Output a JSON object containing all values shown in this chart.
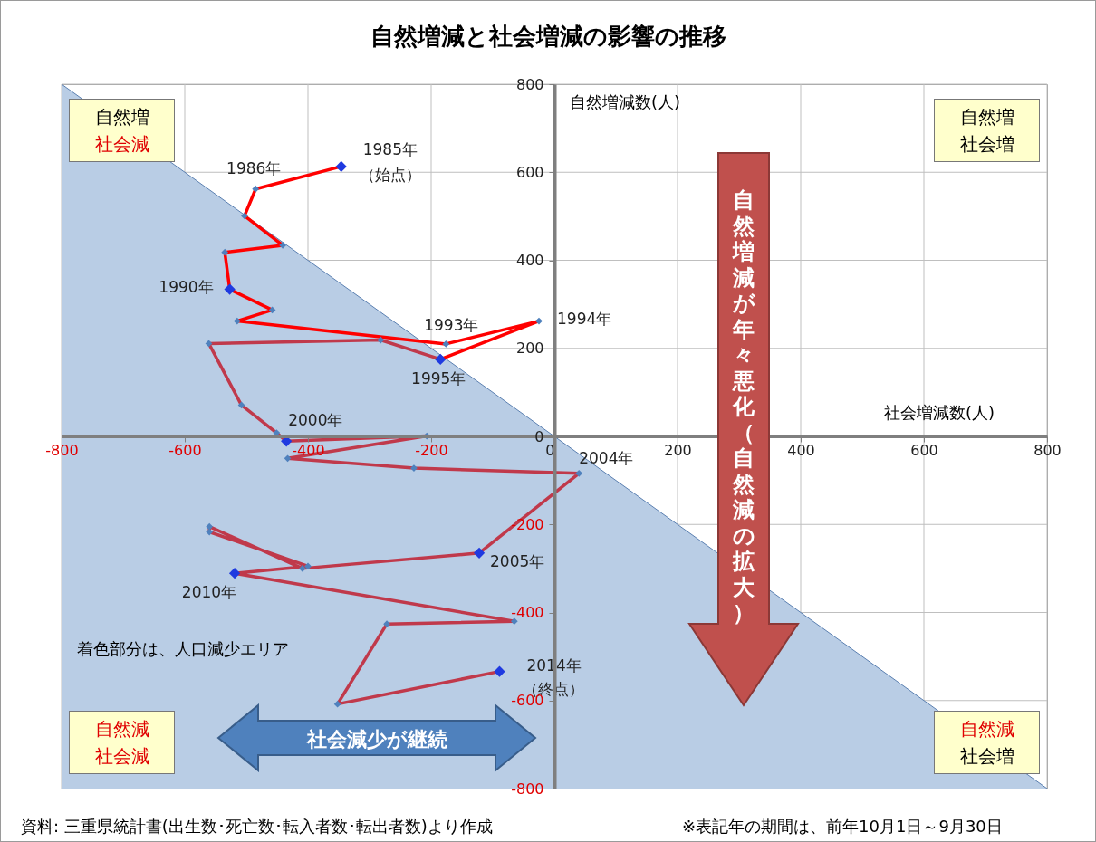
{
  "chart_data": {
    "type": "line",
    "title": "自然増減と社会増減の影響の推移",
    "xlabel": "社会増減数(人)",
    "ylabel": "自然増減数(人)",
    "xlim": [
      -800,
      800
    ],
    "ylim": [
      -800,
      800
    ],
    "xticks": [
      -800,
      -600,
      -400,
      -200,
      0,
      200,
      400,
      600,
      800
    ],
    "yticks": [
      -800,
      -600,
      -400,
      -200,
      0,
      200,
      400,
      600,
      800
    ],
    "grid": true,
    "marker": "diamond",
    "line_style": "solid",
    "series": [
      {
        "type": "area",
        "marker": "none",
        "color": "#b9cde5",
        "x": [
          -800,
          800
        ],
        "values": [
          800,
          -800
        ]
      },
      {
        "marker": "none",
        "color": "#ff0000",
        "x": [
          -346,
          -485,
          -503,
          -441,
          -535,
          -527,
          -458,
          -515,
          -176,
          -25,
          -185
        ],
        "values": [
          613,
          562,
          501,
          434,
          418,
          334,
          287,
          262,
          210,
          262,
          175
        ]
      },
      {
        "marker": "none",
        "color": "#c0394b",
        "x": [
          -185,
          -282,
          -561,
          -508,
          -451,
          -435,
          -207,
          -433,
          -228,
          40,
          -122,
          -409,
          -560,
          -560,
          -400,
          -519,
          -65,
          -272,
          -352,
          -89
        ],
        "values": [
          175,
          219,
          211,
          71,
          8,
          -11,
          1,
          -50,
          -72,
          -84,
          -265,
          -300,
          -205,
          -217,
          -295,
          -311,
          -420,
          -426,
          -608,
          -534
        ]
      },
      {
        "type": "scatter",
        "color": "#4f81bd",
        "x": [
          -485,
          -503,
          -441,
          -535,
          -458,
          -515,
          -176,
          -25,
          -282,
          -561,
          -508,
          -451,
          -207,
          -433,
          -228,
          40,
          -409,
          -560,
          -560,
          -400,
          -65,
          -272,
          -352
        ],
        "values": [
          562,
          501,
          434,
          418,
          287,
          262,
          210,
          262,
          219,
          211,
          71,
          8,
          1,
          -50,
          -72,
          -84,
          -300,
          -205,
          -217,
          -295,
          -420,
          -426,
          -608
        ]
      },
      {
        "type": "scatter",
        "color": "#1f3ae0",
        "x": [
          -346,
          -527,
          -185,
          -435,
          -122,
          -519,
          -89
        ],
        "values": [
          613,
          334,
          175,
          -11,
          -265,
          -311,
          -534
        ]
      }
    ],
    "annotations": [
      "自然増",
      "社会減",
      "自然増",
      "社会増",
      "自然減",
      "社会減",
      "自然減",
      "社会増",
      "着色部分は、人口減少エリア",
      "自然増減が年々悪化（自然減の拡大）",
      "社会減少が継続",
      "資料: 三重県統計書(出生数･死亡数･転入者数･転出者数)より作成",
      "※表記年の期間は、前年10月1日～9月30日",
      {
        "text": "1985年",
        "x": -346,
        "y": 613
      },
      {
        "text": "（始点）",
        "x": -346,
        "y": 613
      },
      {
        "text": "1986年",
        "x": -485,
        "y": 562
      },
      {
        "text": "1990年",
        "x": -527,
        "y": 334
      },
      {
        "text": "1993年",
        "x": -176,
        "y": 210
      },
      {
        "text": "1994年",
        "x": -25,
        "y": 262
      },
      {
        "text": "1995年",
        "x": -185,
        "y": 175
      },
      {
        "text": "2000年",
        "x": -435,
        "y": -11
      },
      {
        "text": "2004年",
        "x": 40,
        "y": -84
      },
      {
        "text": "2005年",
        "x": -122,
        "y": -265
      },
      {
        "text": "2010年",
        "x": -519,
        "y": -311
      },
      {
        "text": "2014年",
        "x": -89,
        "y": -534
      },
      {
        "text": "（終点）",
        "x": -89,
        "y": -534
      }
    ]
  }
}
